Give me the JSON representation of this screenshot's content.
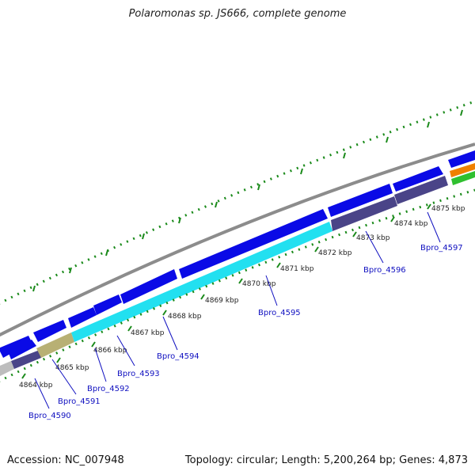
{
  "title": "Polaromonas sp. JS666, complete genome",
  "footer": {
    "accession": "Accession: NC_007948",
    "summary": "Topology: circular; Length: 5,200,264 bp; Genes: 4,873"
  },
  "tick_labels": [
    "4864 kbp",
    "4865 kbp",
    "4866 kbp",
    "4867 kbp",
    "4868 kbp",
    "4869 kbp",
    "4870 kbp",
    "4871 kbp",
    "4872 kbp",
    "4873 kbp",
    "4874 kbp",
    "4875 kbp"
  ],
  "gene_labels": [
    "Bpro_4590",
    "Bpro_4591",
    "Bpro_4592",
    "Bpro_4593",
    "Bpro_4594",
    "Bpro_4595",
    "Bpro_4596",
    "Bpro_4597"
  ],
  "colors": {
    "backbone": "#8c8c8c",
    "forward_cds": "#0a0ae6",
    "reverse_cds": "#4a4488",
    "highlight_cds": "#22e0f0",
    "tan_cds": "#b8b074",
    "grey_cds": "#bdbdbd",
    "orange_feature": "#f08000",
    "green_feature": "#30c030",
    "ticks": "#1a8a1a",
    "gene_label": "#1010c0"
  }
}
